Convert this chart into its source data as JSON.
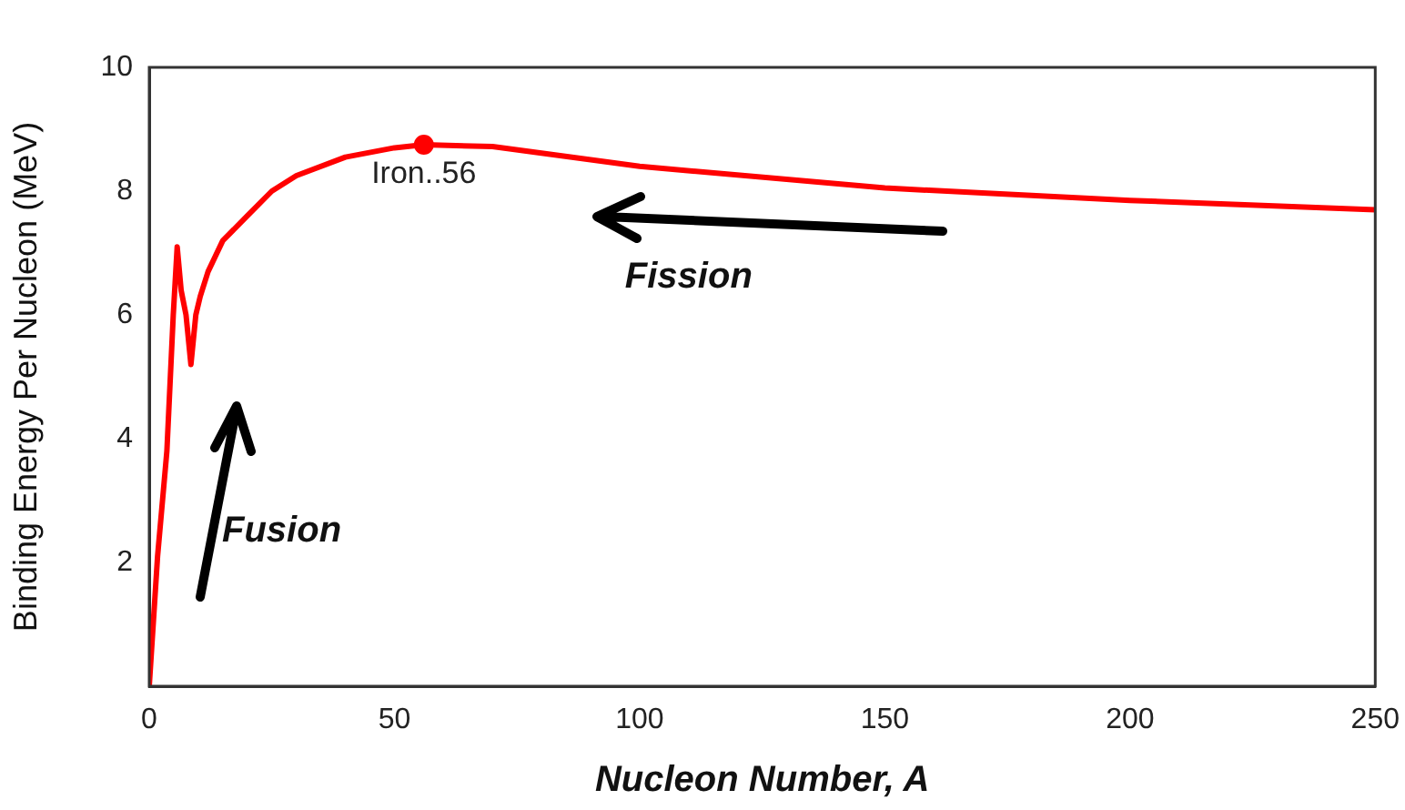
{
  "chart_data": {
    "type": "line",
    "xlabel": "Nucleon Number, A",
    "ylabel": "Binding Energy Per Nucleon (MeV)",
    "xlim": [
      0,
      250
    ],
    "xticks": [
      0,
      50,
      100,
      150,
      200,
      250
    ],
    "ylim": [
      0,
      10
    ],
    "yticks": [
      2,
      4,
      6,
      8,
      10
    ],
    "grid": false,
    "legend": false,
    "series": [
      {
        "color": "#ff0000",
        "marker": "none",
        "x": [
          0,
          1.7,
          3.6,
          4.9,
          5.7,
          6.5,
          7.5,
          8.5,
          9.5,
          10.4,
          12,
          15,
          20,
          25,
          30,
          40,
          50,
          56,
          70,
          100,
          150,
          200,
          250
        ],
        "values": [
          0,
          2.1,
          3.8,
          6.0,
          7.1,
          6.4,
          6.0,
          5.2,
          6.0,
          6.3,
          6.7,
          7.2,
          7.6,
          8.0,
          8.25,
          8.55,
          8.7,
          8.75,
          8.72,
          8.4,
          8.05,
          7.85,
          7.7
        ]
      },
      {
        "type": "scatter",
        "color": "#ff0000",
        "marker": "circle",
        "x": [
          56
        ],
        "values": [
          8.75
        ]
      }
    ],
    "annotations": [
      {
        "text": "Iron..56",
        "x": 56,
        "y": 8.75
      },
      "Fission",
      "Fusion"
    ]
  }
}
